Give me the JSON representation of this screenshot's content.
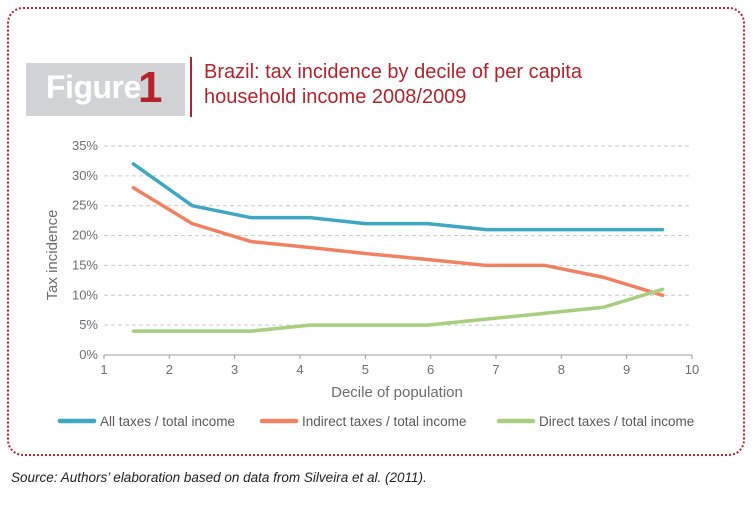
{
  "figure": {
    "label_word": "Figure",
    "label_number": "1",
    "title": "Brazil: tax incidence by decile of per capita household income 2008/2009"
  },
  "source": "Source: Authors’ elaboration based on data from Silveira et al. (2011).",
  "colors": {
    "accent": "#b3232d",
    "label_bg": "#d2d3d5",
    "all_taxes": "#3ea8c2",
    "indirect": "#f08262",
    "direct": "#a8cf7f"
  },
  "chart_data": {
    "type": "line",
    "xlabel": "Decile of population",
    "ylabel": "Tax incidence",
    "xlim": [
      1,
      10
    ],
    "ylim": [
      0,
      35
    ],
    "x_ticks": [
      "1",
      "2",
      "3",
      "4",
      "5",
      "6",
      "7",
      "8",
      "9",
      "10"
    ],
    "y_ticks": [
      "0%",
      "5%",
      "10%",
      "15%",
      "20%",
      "25%",
      "30%",
      "35%"
    ],
    "grid": "horizontal dashed",
    "legend_position": "bottom",
    "x": [
      1.45,
      2.35,
      3.25,
      4.15,
      5.0,
      5.95,
      6.85,
      7.75,
      8.65,
      9.55
    ],
    "series": [
      {
        "name": "All taxes / total income",
        "color": "#3ea8c2",
        "values": [
          32,
          25,
          23,
          23,
          22,
          22,
          21,
          21,
          21,
          21
        ]
      },
      {
        "name": "Indirect taxes / total income",
        "color": "#f08262",
        "values": [
          28,
          22,
          19,
          18,
          17,
          16,
          15,
          15,
          13,
          10
        ]
      },
      {
        "name": "Direct taxes / total income",
        "color": "#a8cf7f",
        "values": [
          4,
          4,
          4,
          5,
          5,
          5,
          6,
          7,
          8,
          11
        ]
      }
    ]
  }
}
